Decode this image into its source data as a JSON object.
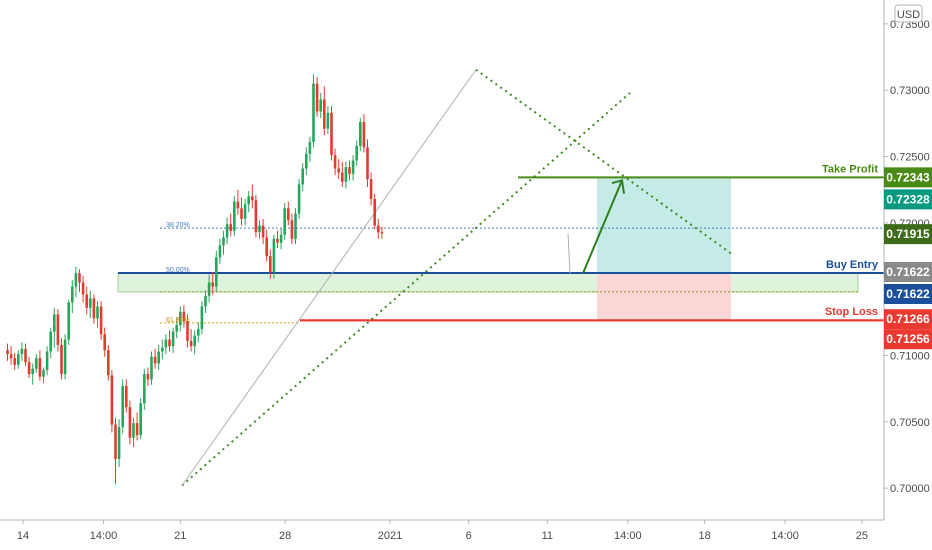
{
  "currency_label": "USD",
  "chart_data": {
    "type": "candlestick",
    "y_axis": {
      "ylim": [
        0.6976,
        0.7368
      ],
      "ticks": [
        "0.73500",
        "0.73000",
        "0.72500",
        "0.72000",
        "0.71500",
        "0.71000",
        "0.70500",
        "0.70000"
      ],
      "tick_values": [
        0.735,
        0.73,
        0.725,
        0.72,
        0.715,
        0.71,
        0.705,
        0.7
      ]
    },
    "x_axis": {
      "ticks": [
        "14",
        "14:00",
        "21",
        "28",
        "2021",
        "6",
        "11",
        "14:00",
        "18",
        "14:00",
        "25"
      ],
      "tick_positions": [
        0,
        21.5,
        42,
        70,
        98,
        119,
        140,
        161.5,
        182,
        203.5,
        224
      ]
    },
    "candles": [
      [
        0.7104,
        0.7109,
        0.7096,
        0.7101
      ],
      [
        0.7101,
        0.7107,
        0.7093,
        0.7098
      ],
      [
        0.7098,
        0.7102,
        0.7089,
        0.7093
      ],
      [
        0.7093,
        0.7104,
        0.709,
        0.7101
      ],
      [
        0.7101,
        0.711,
        0.7096,
        0.7105
      ],
      [
        0.7105,
        0.7109,
        0.7092,
        0.7095
      ],
      [
        0.7095,
        0.7099,
        0.7083,
        0.7086
      ],
      [
        0.7086,
        0.7094,
        0.7078,
        0.709
      ],
      [
        0.709,
        0.7101,
        0.7087,
        0.7098
      ],
      [
        0.7098,
        0.7104,
        0.7081,
        0.7084
      ],
      [
        0.7084,
        0.7091,
        0.7079,
        0.7089
      ],
      [
        0.7089,
        0.7107,
        0.7085,
        0.7103
      ],
      [
        0.7103,
        0.7121,
        0.7098,
        0.7118
      ],
      [
        0.7118,
        0.7136,
        0.7106,
        0.7131
      ],
      [
        0.7131,
        0.7135,
        0.7103,
        0.7108
      ],
      [
        0.7108,
        0.7113,
        0.7082,
        0.7086
      ],
      [
        0.7086,
        0.7116,
        0.7082,
        0.7112
      ],
      [
        0.7112,
        0.7142,
        0.7108,
        0.714
      ],
      [
        0.714,
        0.7157,
        0.7132,
        0.7152
      ],
      [
        0.7152,
        0.7167,
        0.7144,
        0.7162
      ],
      [
        0.7162,
        0.7165,
        0.7148,
        0.7155
      ],
      [
        0.7155,
        0.716,
        0.714,
        0.7146
      ],
      [
        0.7146,
        0.7152,
        0.7131,
        0.7136
      ],
      [
        0.7136,
        0.7149,
        0.7128,
        0.7143
      ],
      [
        0.7143,
        0.7146,
        0.7124,
        0.7128
      ],
      [
        0.7128,
        0.7141,
        0.7121,
        0.7137
      ],
      [
        0.7137,
        0.7141,
        0.7112,
        0.7116
      ],
      [
        0.7116,
        0.7121,
        0.7099,
        0.7104
      ],
      [
        0.7104,
        0.7108,
        0.7081,
        0.7085
      ],
      [
        0.7085,
        0.7089,
        0.7042,
        0.7048
      ],
      [
        0.7048,
        0.7053,
        0.7003,
        0.7022
      ],
      [
        0.7022,
        0.7052,
        0.7016,
        0.7046
      ],
      [
        0.7046,
        0.7082,
        0.7041,
        0.7077
      ],
      [
        0.7077,
        0.7082,
        0.7057,
        0.7061
      ],
      [
        0.7061,
        0.7066,
        0.7033,
        0.7038
      ],
      [
        0.7038,
        0.7053,
        0.7031,
        0.7049
      ],
      [
        0.7049,
        0.7057,
        0.7036,
        0.704
      ],
      [
        0.704,
        0.7068,
        0.7037,
        0.7064
      ],
      [
        0.7064,
        0.709,
        0.7059,
        0.7086
      ],
      [
        0.7086,
        0.7091,
        0.7077,
        0.7082
      ],
      [
        0.7082,
        0.7103,
        0.7078,
        0.7099
      ],
      [
        0.7099,
        0.7105,
        0.709,
        0.7094
      ],
      [
        0.7094,
        0.7108,
        0.7089,
        0.7103
      ],
      [
        0.7103,
        0.7112,
        0.7097,
        0.7106
      ],
      [
        0.7106,
        0.7116,
        0.7101,
        0.7112
      ],
      [
        0.7112,
        0.7119,
        0.7103,
        0.7107
      ],
      [
        0.7107,
        0.7121,
        0.7102,
        0.7118
      ],
      [
        0.7118,
        0.7129,
        0.7113,
        0.7123
      ],
      [
        0.7123,
        0.7137,
        0.7118,
        0.7133
      ],
      [
        0.7133,
        0.7138,
        0.7121,
        0.7126
      ],
      [
        0.7126,
        0.7131,
        0.7106,
        0.7111
      ],
      [
        0.7111,
        0.712,
        0.7103,
        0.7107
      ],
      [
        0.7107,
        0.7119,
        0.7101,
        0.7115
      ],
      [
        0.7115,
        0.7125,
        0.711,
        0.712
      ],
      [
        0.712,
        0.7141,
        0.7116,
        0.7137
      ],
      [
        0.7137,
        0.7149,
        0.7132,
        0.7145
      ],
      [
        0.7145,
        0.7161,
        0.714,
        0.7155
      ],
      [
        0.7155,
        0.7163,
        0.7146,
        0.7152
      ],
      [
        0.7152,
        0.7179,
        0.7148,
        0.7174
      ],
      [
        0.7174,
        0.7188,
        0.7169,
        0.7183
      ],
      [
        0.7183,
        0.7194,
        0.7176,
        0.7189
      ],
      [
        0.7189,
        0.7204,
        0.7184,
        0.7199
      ],
      [
        0.7199,
        0.7207,
        0.719,
        0.7194
      ],
      [
        0.7194,
        0.722,
        0.719,
        0.7216
      ],
      [
        0.7216,
        0.7225,
        0.7206,
        0.7211
      ],
      [
        0.7211,
        0.7219,
        0.7198,
        0.7203
      ],
      [
        0.7203,
        0.7218,
        0.7198,
        0.7214
      ],
      [
        0.7214,
        0.7224,
        0.7208,
        0.722
      ],
      [
        0.722,
        0.7229,
        0.7211,
        0.7217
      ],
      [
        0.7217,
        0.7221,
        0.7189,
        0.7193
      ],
      [
        0.7193,
        0.7202,
        0.7188,
        0.7198
      ],
      [
        0.7198,
        0.7203,
        0.7184,
        0.7189
      ],
      [
        0.7189,
        0.7195,
        0.7171,
        0.7175
      ],
      [
        0.7175,
        0.718,
        0.7158,
        0.7163
      ],
      [
        0.7163,
        0.7191,
        0.7158,
        0.7188
      ],
      [
        0.7188,
        0.7194,
        0.7181,
        0.7185
      ],
      [
        0.7185,
        0.7196,
        0.718,
        0.7191
      ],
      [
        0.7191,
        0.7215,
        0.7187,
        0.7211
      ],
      [
        0.7211,
        0.7216,
        0.7198,
        0.7202
      ],
      [
        0.7202,
        0.7207,
        0.7184,
        0.7188
      ],
      [
        0.7188,
        0.7211,
        0.7184,
        0.7207
      ],
      [
        0.7207,
        0.7233,
        0.7203,
        0.7229
      ],
      [
        0.7229,
        0.7245,
        0.7224,
        0.7241
      ],
      [
        0.7241,
        0.7257,
        0.7236,
        0.7252
      ],
      [
        0.7252,
        0.7265,
        0.7246,
        0.7261
      ],
      [
        0.7261,
        0.7312,
        0.7257,
        0.7305
      ],
      [
        0.7305,
        0.731,
        0.728,
        0.7284
      ],
      [
        0.7284,
        0.7298,
        0.7279,
        0.7293
      ],
      [
        0.7293,
        0.7303,
        0.7266,
        0.7271
      ],
      [
        0.7271,
        0.7288,
        0.7267,
        0.7283
      ],
      [
        0.7283,
        0.7288,
        0.7247,
        0.7251
      ],
      [
        0.7251,
        0.7256,
        0.7236,
        0.7241
      ],
      [
        0.7241,
        0.7248,
        0.7233,
        0.7238
      ],
      [
        0.7238,
        0.7246,
        0.7227,
        0.7231
      ],
      [
        0.7231,
        0.7246,
        0.7226,
        0.7242
      ],
      [
        0.7242,
        0.7247,
        0.7232,
        0.7237
      ],
      [
        0.7237,
        0.7251,
        0.7232,
        0.7247
      ],
      [
        0.7247,
        0.7262,
        0.7243,
        0.7258
      ],
      [
        0.7258,
        0.7279,
        0.7254,
        0.7276
      ],
      [
        0.7276,
        0.7282,
        0.7253,
        0.7257
      ],
      [
        0.7257,
        0.7263,
        0.7227,
        0.7233
      ],
      [
        0.7233,
        0.7238,
        0.7213,
        0.7218
      ],
      [
        0.7218,
        0.7222,
        0.7195,
        0.7198
      ],
      [
        0.7198,
        0.7203,
        0.7188,
        0.7193
      ],
      [
        0.7193,
        0.7197,
        0.7188,
        0.7192
      ]
    ],
    "levels": [
      {
        "name": "Take Profit",
        "values": [
          "0.72343",
          "0.72328"
        ],
        "colors": [
          "#4a8a16",
          "#089981"
        ]
      },
      {
        "name": "Buy Entry",
        "values": [
          "0.71622",
          "0.71622"
        ],
        "colors": [
          "#8a8a8a",
          "#1b4f9c"
        ]
      },
      {
        "name": "Stop Loss",
        "values": [
          "0.71266",
          "0.71256"
        ],
        "colors": [
          "#e83a30",
          "#e83a30"
        ]
      },
      {
        "name": "",
        "values": [
          "0.71915"
        ],
        "colors": [
          "#3d6b1a"
        ]
      }
    ],
    "fib_labels": [
      "38.20%",
      "50.00%",
      "61.80%"
    ],
    "colors": {
      "up": "#26a65b",
      "down": "#e33b2e",
      "take_profit": "#4a8a16",
      "buy_entry": "#1b4f9c",
      "stop_loss": "#e83a30"
    }
  }
}
